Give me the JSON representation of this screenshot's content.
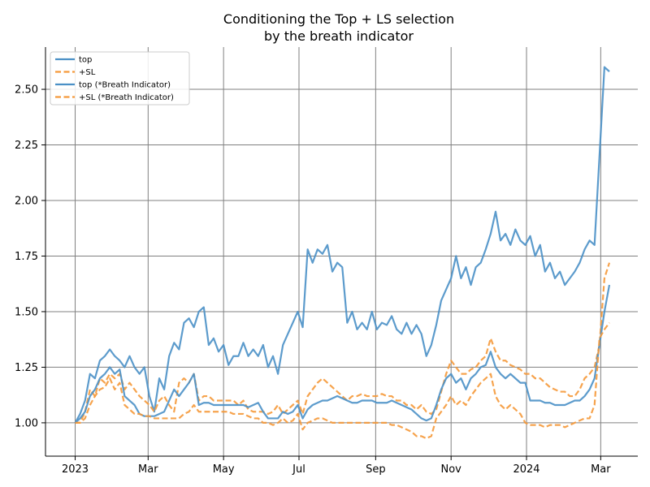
{
  "chart_data": {
    "type": "line",
    "title_lines": [
      "Conditioning the Top + LS selection",
      "by the breath indicator"
    ],
    "xlabel": "",
    "ylabel": "",
    "x_ticks": [
      {
        "date": "2023-01-01",
        "label": "2023"
      },
      {
        "date": "2023-03-01",
        "label": "Mar"
      },
      {
        "date": "2023-05-01",
        "label": "May"
      },
      {
        "date": "2023-07-01",
        "label": "Jul"
      },
      {
        "date": "2023-09-01",
        "label": "Sep"
      },
      {
        "date": "2023-11-01",
        "label": "Nov"
      },
      {
        "date": "2024-01-01",
        "label": "2024"
      },
      {
        "date": "2024-03-01",
        "label": "Mar"
      }
    ],
    "y_ticks": [
      {
        "value": 1.0,
        "label": "1.00"
      },
      {
        "value": 1.25,
        "label": "1.25"
      },
      {
        "value": 1.5,
        "label": "1.50"
      },
      {
        "value": 1.75,
        "label": "1.75"
      },
      {
        "value": 2.0,
        "label": "2.00"
      },
      {
        "value": 2.25,
        "label": "2.25"
      },
      {
        "value": 2.5,
        "label": "2.50"
      }
    ],
    "xlim": [
      "2022-12-08",
      "2024-03-31"
    ],
    "ylim": [
      0.85,
      2.69
    ],
    "grid": true,
    "legend_position": "top-left",
    "colors": {
      "blue": "#4a90c6",
      "orange": "#f5993a",
      "grid": "#808080"
    },
    "series": [
      {
        "name": "top",
        "color": "#4a90c6",
        "dashed": false,
        "x": [
          "2023-01-01",
          "2023-01-05",
          "2023-01-09",
          "2023-01-13",
          "2023-01-17",
          "2023-01-21",
          "2023-01-25",
          "2023-01-29",
          "2023-02-02",
          "2023-02-06",
          "2023-02-10",
          "2023-02-14",
          "2023-02-18",
          "2023-02-22",
          "2023-02-26",
          "2023-03-02",
          "2023-03-06",
          "2023-03-10",
          "2023-03-14",
          "2023-03-18",
          "2023-03-22",
          "2023-03-26",
          "2023-03-30",
          "2023-04-03",
          "2023-04-07",
          "2023-04-11",
          "2023-04-15",
          "2023-04-19",
          "2023-04-23",
          "2023-04-27",
          "2023-05-01",
          "2023-05-05",
          "2023-05-09",
          "2023-05-13",
          "2023-05-17",
          "2023-05-21",
          "2023-05-25",
          "2023-05-29",
          "2023-06-02",
          "2023-06-06",
          "2023-06-10",
          "2023-06-14",
          "2023-06-18",
          "2023-06-22",
          "2023-06-26",
          "2023-06-30",
          "2023-07-04",
          "2023-07-08",
          "2023-07-12",
          "2023-07-16",
          "2023-07-20",
          "2023-07-24",
          "2023-07-28",
          "2023-08-01",
          "2023-08-05",
          "2023-08-09",
          "2023-08-13",
          "2023-08-17",
          "2023-08-21",
          "2023-08-25",
          "2023-08-29",
          "2023-09-02",
          "2023-09-06",
          "2023-09-10",
          "2023-09-14",
          "2023-09-18",
          "2023-09-22",
          "2023-09-26",
          "2023-09-30",
          "2023-10-04",
          "2023-10-08",
          "2023-10-12",
          "2023-10-16",
          "2023-10-20",
          "2023-10-24",
          "2023-10-28",
          "2023-11-01",
          "2023-11-05",
          "2023-11-09",
          "2023-11-13",
          "2023-11-17",
          "2023-11-21",
          "2023-11-25",
          "2023-11-29",
          "2023-12-03",
          "2023-12-07",
          "2023-12-11",
          "2023-12-15",
          "2023-12-19",
          "2023-12-23",
          "2023-12-27",
          "2023-12-31",
          "2024-01-04",
          "2024-01-08",
          "2024-01-12",
          "2024-01-16",
          "2024-01-20",
          "2024-01-24",
          "2024-01-28",
          "2024-02-01",
          "2024-02-05",
          "2024-02-09",
          "2024-02-13",
          "2024-02-17",
          "2024-02-21",
          "2024-02-25",
          "2024-02-29",
          "2024-03-04",
          "2024-03-08"
        ],
        "y": [
          1.0,
          1.04,
          1.1,
          1.22,
          1.2,
          1.28,
          1.3,
          1.33,
          1.3,
          1.28,
          1.25,
          1.3,
          1.25,
          1.22,
          1.25,
          1.12,
          1.05,
          1.2,
          1.15,
          1.3,
          1.36,
          1.33,
          1.45,
          1.47,
          1.43,
          1.5,
          1.52,
          1.35,
          1.38,
          1.32,
          1.35,
          1.26,
          1.3,
          1.3,
          1.36,
          1.3,
          1.33,
          1.3,
          1.35,
          1.25,
          1.3,
          1.22,
          1.35,
          1.4,
          1.45,
          1.5,
          1.43,
          1.78,
          1.72,
          1.78,
          1.76,
          1.8,
          1.68,
          1.72,
          1.7,
          1.45,
          1.5,
          1.42,
          1.45,
          1.42,
          1.5,
          1.42,
          1.45,
          1.44,
          1.48,
          1.42,
          1.4,
          1.45,
          1.4,
          1.44,
          1.4,
          1.3,
          1.35,
          1.44,
          1.55,
          1.6,
          1.65,
          1.75,
          1.65,
          1.7,
          1.62,
          1.7,
          1.72,
          1.78,
          1.85,
          1.95,
          1.82,
          1.85,
          1.8,
          1.87,
          1.82,
          1.8,
          1.84,
          1.75,
          1.8,
          1.68,
          1.72,
          1.65,
          1.68,
          1.62,
          1.65,
          1.68,
          1.72,
          1.78,
          1.82,
          1.8,
          2.2,
          2.6,
          2.58
        ]
      },
      {
        "name": "+SL",
        "color": "#f5993a",
        "dashed": true,
        "x": [
          "2023-01-01",
          "2023-01-05",
          "2023-01-09",
          "2023-01-13",
          "2023-01-17",
          "2023-01-21",
          "2023-01-25",
          "2023-01-29",
          "2023-02-02",
          "2023-02-06",
          "2023-02-10",
          "2023-02-14",
          "2023-02-18",
          "2023-02-22",
          "2023-02-26",
          "2023-03-02",
          "2023-03-06",
          "2023-03-10",
          "2023-03-14",
          "2023-03-18",
          "2023-03-22",
          "2023-03-26",
          "2023-03-30",
          "2023-04-03",
          "2023-04-07",
          "2023-04-11",
          "2023-04-15",
          "2023-04-19",
          "2023-04-23",
          "2023-04-27",
          "2023-05-01",
          "2023-05-05",
          "2023-05-09",
          "2023-05-13",
          "2023-05-17",
          "2023-05-21",
          "2023-05-25",
          "2023-05-29",
          "2023-06-02",
          "2023-06-06",
          "2023-06-10",
          "2023-06-14",
          "2023-06-18",
          "2023-06-22",
          "2023-06-26",
          "2023-06-30",
          "2023-07-04",
          "2023-07-08",
          "2023-07-12",
          "2023-07-16",
          "2023-07-20",
          "2023-07-24",
          "2023-07-28",
          "2023-08-01",
          "2023-08-05",
          "2023-08-09",
          "2023-08-13",
          "2023-08-17",
          "2023-08-21",
          "2023-08-25",
          "2023-08-29",
          "2023-09-02",
          "2023-09-06",
          "2023-09-10",
          "2023-09-14",
          "2023-09-18",
          "2023-09-22",
          "2023-09-26",
          "2023-09-30",
          "2023-10-04",
          "2023-10-08",
          "2023-10-12",
          "2023-10-16",
          "2023-10-20",
          "2023-10-24",
          "2023-10-28",
          "2023-11-01",
          "2023-11-05",
          "2023-11-09",
          "2023-11-13",
          "2023-11-17",
          "2023-11-21",
          "2023-11-25",
          "2023-11-29",
          "2023-12-03",
          "2023-12-07",
          "2023-12-11",
          "2023-12-15",
          "2023-12-19",
          "2023-12-23",
          "2023-12-27",
          "2023-12-31",
          "2024-01-04",
          "2024-01-08",
          "2024-01-12",
          "2024-01-16",
          "2024-01-20",
          "2024-01-24",
          "2024-01-28",
          "2024-02-01",
          "2024-02-05",
          "2024-02-09",
          "2024-02-13",
          "2024-02-17",
          "2024-02-21",
          "2024-02-25",
          "2024-02-29",
          "2024-03-04",
          "2024-03-08"
        ],
        "y": [
          1.0,
          1.0,
          1.05,
          1.15,
          1.12,
          1.2,
          1.18,
          1.22,
          1.2,
          1.22,
          1.15,
          1.18,
          1.15,
          1.12,
          1.1,
          1.08,
          1.05,
          1.1,
          1.12,
          1.08,
          1.05,
          1.18,
          1.2,
          1.18,
          1.22,
          1.1,
          1.12,
          1.12,
          1.1,
          1.1,
          1.1,
          1.1,
          1.1,
          1.08,
          1.1,
          1.06,
          1.05,
          1.05,
          1.05,
          1.04,
          1.05,
          1.08,
          1.04,
          1.06,
          1.08,
          1.1,
          1.04,
          1.12,
          1.15,
          1.18,
          1.2,
          1.18,
          1.16,
          1.14,
          1.12,
          1.1,
          1.12,
          1.12,
          1.13,
          1.12,
          1.12,
          1.12,
          1.13,
          1.12,
          1.12,
          1.1,
          1.1,
          1.08,
          1.08,
          1.06,
          1.08,
          1.05,
          1.04,
          1.06,
          1.14,
          1.22,
          1.28,
          1.25,
          1.22,
          1.22,
          1.24,
          1.25,
          1.28,
          1.3,
          1.38,
          1.32,
          1.28,
          1.28,
          1.26,
          1.25,
          1.24,
          1.22,
          1.22,
          1.2,
          1.2,
          1.18,
          1.16,
          1.15,
          1.14,
          1.14,
          1.12,
          1.12,
          1.15,
          1.2,
          1.22,
          1.25,
          1.35,
          1.65,
          1.72
        ]
      },
      {
        "name": "top (*Breath Indicator)",
        "color": "#4a90c6",
        "dashed": false,
        "x": [
          "2023-01-01",
          "2023-01-05",
          "2023-01-09",
          "2023-01-13",
          "2023-01-17",
          "2023-01-21",
          "2023-01-25",
          "2023-01-29",
          "2023-02-02",
          "2023-02-06",
          "2023-02-10",
          "2023-02-14",
          "2023-02-18",
          "2023-02-22",
          "2023-02-26",
          "2023-03-02",
          "2023-03-06",
          "2023-03-10",
          "2023-03-14",
          "2023-03-18",
          "2023-03-22",
          "2023-03-26",
          "2023-03-30",
          "2023-04-03",
          "2023-04-07",
          "2023-04-11",
          "2023-04-15",
          "2023-04-19",
          "2023-04-23",
          "2023-04-27",
          "2023-05-01",
          "2023-05-05",
          "2023-05-09",
          "2023-05-13",
          "2023-05-17",
          "2023-05-21",
          "2023-05-25",
          "2023-05-29",
          "2023-06-02",
          "2023-06-06",
          "2023-06-10",
          "2023-06-14",
          "2023-06-18",
          "2023-06-22",
          "2023-06-26",
          "2023-06-30",
          "2023-07-04",
          "2023-07-08",
          "2023-07-12",
          "2023-07-16",
          "2023-07-20",
          "2023-07-24",
          "2023-07-28",
          "2023-08-01",
          "2023-08-05",
          "2023-08-09",
          "2023-08-13",
          "2023-08-17",
          "2023-08-21",
          "2023-08-25",
          "2023-08-29",
          "2023-09-02",
          "2023-09-06",
          "2023-09-10",
          "2023-09-14",
          "2023-09-18",
          "2023-09-22",
          "2023-09-26",
          "2023-09-30",
          "2023-10-04",
          "2023-10-08",
          "2023-10-12",
          "2023-10-16",
          "2023-10-20",
          "2023-10-24",
          "2023-10-28",
          "2023-11-01",
          "2023-11-05",
          "2023-11-09",
          "2023-11-13",
          "2023-11-17",
          "2023-11-21",
          "2023-11-25",
          "2023-11-29",
          "2023-12-03",
          "2023-12-07",
          "2023-12-11",
          "2023-12-15",
          "2023-12-19",
          "2023-12-23",
          "2023-12-27",
          "2023-12-31",
          "2024-01-04",
          "2024-01-08",
          "2024-01-12",
          "2024-01-16",
          "2024-01-20",
          "2024-01-24",
          "2024-01-28",
          "2024-02-01",
          "2024-02-05",
          "2024-02-09",
          "2024-02-13",
          "2024-02-17",
          "2024-02-21",
          "2024-02-25",
          "2024-02-29",
          "2024-03-04",
          "2024-03-08"
        ],
        "y": [
          1.0,
          1.02,
          1.05,
          1.12,
          1.15,
          1.2,
          1.22,
          1.25,
          1.22,
          1.24,
          1.12,
          1.1,
          1.08,
          1.04,
          1.03,
          1.03,
          1.03,
          1.04,
          1.05,
          1.1,
          1.15,
          1.12,
          1.15,
          1.18,
          1.22,
          1.08,
          1.09,
          1.09,
          1.08,
          1.08,
          1.08,
          1.08,
          1.08,
          1.08,
          1.08,
          1.07,
          1.08,
          1.09,
          1.05,
          1.02,
          1.02,
          1.02,
          1.05,
          1.04,
          1.05,
          1.08,
          1.02,
          1.06,
          1.08,
          1.09,
          1.1,
          1.1,
          1.11,
          1.12,
          1.11,
          1.1,
          1.09,
          1.09,
          1.1,
          1.1,
          1.1,
          1.09,
          1.09,
          1.09,
          1.1,
          1.09,
          1.08,
          1.07,
          1.06,
          1.04,
          1.02,
          1.01,
          1.02,
          1.08,
          1.15,
          1.2,
          1.22,
          1.18,
          1.2,
          1.15,
          1.2,
          1.22,
          1.25,
          1.26,
          1.32,
          1.25,
          1.22,
          1.2,
          1.22,
          1.2,
          1.18,
          1.18,
          1.1,
          1.1,
          1.1,
          1.09,
          1.09,
          1.08,
          1.08,
          1.08,
          1.09,
          1.1,
          1.1,
          1.12,
          1.15,
          1.2,
          1.35,
          1.5,
          1.62
        ]
      },
      {
        "name": "+SL (*Breath Indicator)",
        "color": "#f5993a",
        "dashed": true,
        "x": [
          "2023-01-01",
          "2023-01-05",
          "2023-01-09",
          "2023-01-13",
          "2023-01-17",
          "2023-01-21",
          "2023-01-25",
          "2023-01-29",
          "2023-02-02",
          "2023-02-06",
          "2023-02-10",
          "2023-02-14",
          "2023-02-18",
          "2023-02-22",
          "2023-02-26",
          "2023-03-02",
          "2023-03-06",
          "2023-03-10",
          "2023-03-14",
          "2023-03-18",
          "2023-03-22",
          "2023-03-26",
          "2023-03-30",
          "2023-04-03",
          "2023-04-07",
          "2023-04-11",
          "2023-04-15",
          "2023-04-19",
          "2023-04-23",
          "2023-04-27",
          "2023-05-01",
          "2023-05-05",
          "2023-05-09",
          "2023-05-13",
          "2023-05-17",
          "2023-05-21",
          "2023-05-25",
          "2023-05-29",
          "2023-06-02",
          "2023-06-06",
          "2023-06-10",
          "2023-06-14",
          "2023-06-18",
          "2023-06-22",
          "2023-06-26",
          "2023-06-30",
          "2023-07-04",
          "2023-07-08",
          "2023-07-12",
          "2023-07-16",
          "2023-07-20",
          "2023-07-24",
          "2023-07-28",
          "2023-08-01",
          "2023-08-05",
          "2023-08-09",
          "2023-08-13",
          "2023-08-17",
          "2023-08-21",
          "2023-08-25",
          "2023-08-29",
          "2023-09-02",
          "2023-09-06",
          "2023-09-10",
          "2023-09-14",
          "2023-09-18",
          "2023-09-22",
          "2023-09-26",
          "2023-09-30",
          "2023-10-04",
          "2023-10-08",
          "2023-10-12",
          "2023-10-16",
          "2023-10-20",
          "2023-10-24",
          "2023-10-28",
          "2023-11-01",
          "2023-11-05",
          "2023-11-09",
          "2023-11-13",
          "2023-11-17",
          "2023-11-21",
          "2023-11-25",
          "2023-11-29",
          "2023-12-03",
          "2023-12-07",
          "2023-12-11",
          "2023-12-15",
          "2023-12-19",
          "2023-12-23",
          "2023-12-27",
          "2023-12-31",
          "2024-01-04",
          "2024-01-08",
          "2024-01-12",
          "2024-01-16",
          "2024-01-20",
          "2024-01-24",
          "2024-01-28",
          "2024-02-01",
          "2024-02-05",
          "2024-02-09",
          "2024-02-13",
          "2024-02-17",
          "2024-02-21",
          "2024-02-25",
          "2024-02-29",
          "2024-03-04",
          "2024-03-08"
        ],
        "y": [
          1.0,
          1.0,
          1.02,
          1.08,
          1.12,
          1.15,
          1.16,
          1.2,
          1.15,
          1.18,
          1.08,
          1.06,
          1.04,
          1.04,
          1.03,
          1.03,
          1.02,
          1.02,
          1.02,
          1.02,
          1.02,
          1.02,
          1.04,
          1.05,
          1.08,
          1.05,
          1.05,
          1.05,
          1.05,
          1.05,
          1.05,
          1.05,
          1.04,
          1.04,
          1.04,
          1.03,
          1.02,
          1.02,
          1.0,
          1.0,
          0.99,
          1.0,
          1.02,
          1.0,
          1.01,
          1.04,
          0.97,
          1.0,
          1.01,
          1.02,
          1.02,
          1.01,
          1.0,
          1.0,
          1.0,
          1.0,
          1.0,
          1.0,
          1.0,
          1.0,
          1.0,
          1.0,
          1.0,
          1.0,
          0.99,
          0.99,
          0.98,
          0.97,
          0.96,
          0.94,
          0.94,
          0.93,
          0.94,
          1.02,
          1.05,
          1.08,
          1.12,
          1.08,
          1.1,
          1.08,
          1.12,
          1.15,
          1.18,
          1.2,
          1.22,
          1.12,
          1.08,
          1.06,
          1.08,
          1.06,
          1.04,
          1.0,
          0.99,
          0.99,
          0.99,
          0.98,
          0.99,
          0.99,
          0.99,
          0.98,
          0.99,
          1.0,
          1.01,
          1.02,
          1.02,
          1.08,
          1.38,
          1.42,
          1.45
        ]
      }
    ]
  }
}
